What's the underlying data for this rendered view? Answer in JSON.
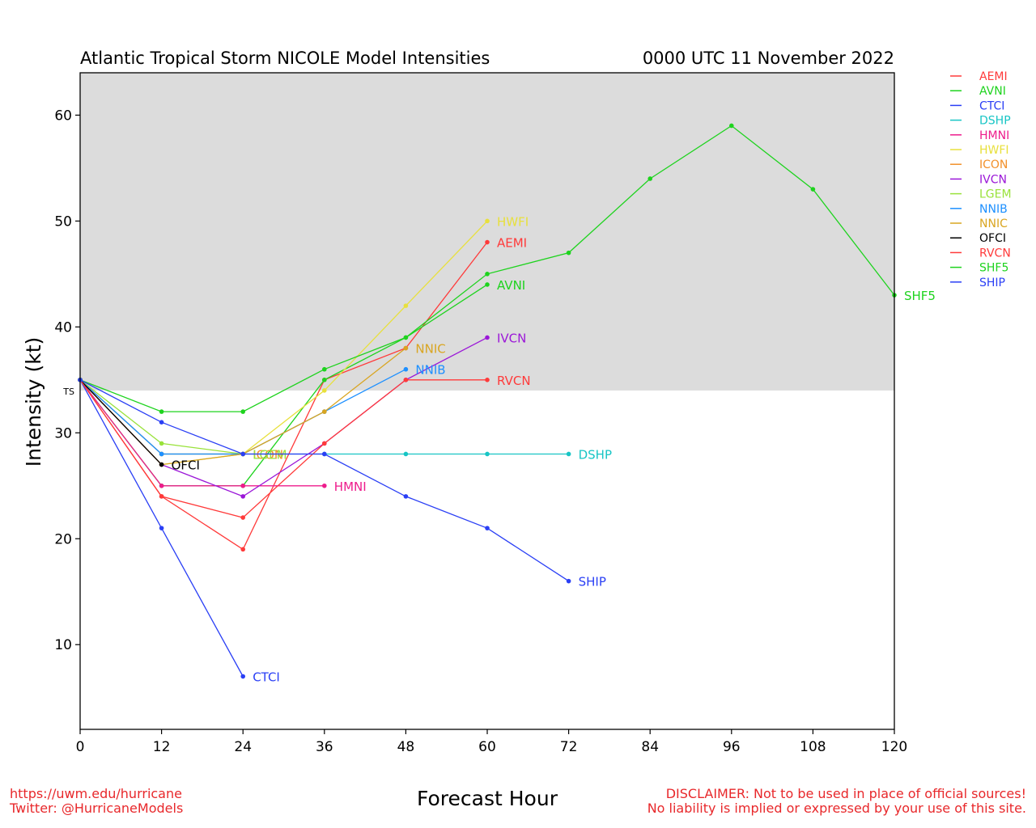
{
  "chart_data": {
    "type": "line",
    "title": "Atlantic Tropical Storm NICOLE Model Intensities",
    "date_label": "0000 UTC 11 November 2022",
    "xlabel": "Forecast Hour",
    "ylabel": "Intensity (kt)",
    "xlim": [
      0,
      120
    ],
    "ylim": [
      2,
      64
    ],
    "x_ticks": [
      0,
      12,
      24,
      36,
      48,
      60,
      72,
      84,
      96,
      108,
      120
    ],
    "y_ticks": [
      10,
      20,
      30,
      40,
      50,
      60
    ],
    "ts_threshold": 34,
    "ts_label": "TS",
    "shade_color": "#dcdcdc",
    "legend_position": "right",
    "series": [
      {
        "name": "AEMI",
        "color": "#ff3a3a",
        "x": [
          0,
          12,
          24,
          36,
          48,
          60
        ],
        "values": [
          35,
          24,
          19,
          35,
          38,
          48
        ]
      },
      {
        "name": "AVNI",
        "color": "#1ed31e",
        "x": [
          0,
          12,
          24,
          36,
          48,
          60
        ],
        "values": [
          35,
          25,
          25,
          35,
          39,
          44
        ]
      },
      {
        "name": "CTCI",
        "color": "#2a3ff5",
        "x": [
          0,
          12,
          24
        ],
        "values": [
          35,
          21,
          7
        ]
      },
      {
        "name": "DSHP",
        "color": "#17c5c5",
        "x": [
          0,
          12,
          24,
          36,
          48,
          60,
          72
        ],
        "values": [
          35,
          28,
          28,
          28,
          28,
          28,
          28
        ]
      },
      {
        "name": "HMNI",
        "color": "#ee1c8c",
        "x": [
          0,
          12,
          24,
          36
        ],
        "values": [
          35,
          25,
          25,
          25
        ]
      },
      {
        "name": "HWFI",
        "color": "#e8e03c",
        "x": [
          0,
          12,
          24,
          36,
          48,
          60
        ],
        "values": [
          35,
          27,
          28,
          34,
          42,
          50
        ]
      },
      {
        "name": "ICON",
        "color": "#f2902a",
        "x": [
          0,
          12,
          24
        ],
        "values": [
          35,
          28,
          28
        ]
      },
      {
        "name": "IVCN",
        "color": "#9b17d8",
        "x": [
          0,
          12,
          24,
          36,
          48,
          60
        ],
        "values": [
          35,
          27,
          24,
          29,
          35,
          39
        ]
      },
      {
        "name": "LGEM",
        "color": "#99e23a",
        "x": [
          0,
          12,
          24
        ],
        "values": [
          35,
          29,
          28
        ]
      },
      {
        "name": "NNIB",
        "color": "#1e90ff",
        "x": [
          0,
          12,
          24,
          36,
          48
        ],
        "values": [
          35,
          28,
          28,
          32,
          36
        ]
      },
      {
        "name": "NNIC",
        "color": "#d9a521",
        "x": [
          0,
          12,
          24,
          36,
          48
        ],
        "values": [
          35,
          27,
          28,
          32,
          38
        ]
      },
      {
        "name": "OFCI",
        "color": "#000000",
        "x": [
          0,
          12
        ],
        "values": [
          35,
          27
        ]
      },
      {
        "name": "RVCN",
        "color": "#ff3a3a",
        "x": [
          0,
          12,
          24,
          36,
          48,
          60
        ],
        "values": [
          35,
          24,
          22,
          29,
          35,
          35
        ]
      },
      {
        "name": "SHF5",
        "color": "#1ed31e",
        "x": [
          0,
          12,
          24,
          36,
          48,
          60,
          72,
          84,
          96,
          108,
          120
        ],
        "values": [
          35,
          32,
          32,
          36,
          39,
          45,
          47,
          54,
          59,
          53,
          43
        ]
      },
      {
        "name": "SHIP",
        "color": "#2a3ff5",
        "x": [
          0,
          12,
          24,
          36,
          48,
          60,
          72
        ],
        "values": [
          35,
          31,
          28,
          28,
          24,
          21,
          16
        ]
      }
    ]
  },
  "footer": {
    "url": "https://uwm.edu/hurricane",
    "twitter": "Twitter: @HurricaneModels",
    "disclaimer_line1": "DISCLAIMER: Not to be used in place of official sources!",
    "disclaimer_line2": "No liability is implied or expressed by your use of this site.",
    "text_color": "#e8282b"
  }
}
